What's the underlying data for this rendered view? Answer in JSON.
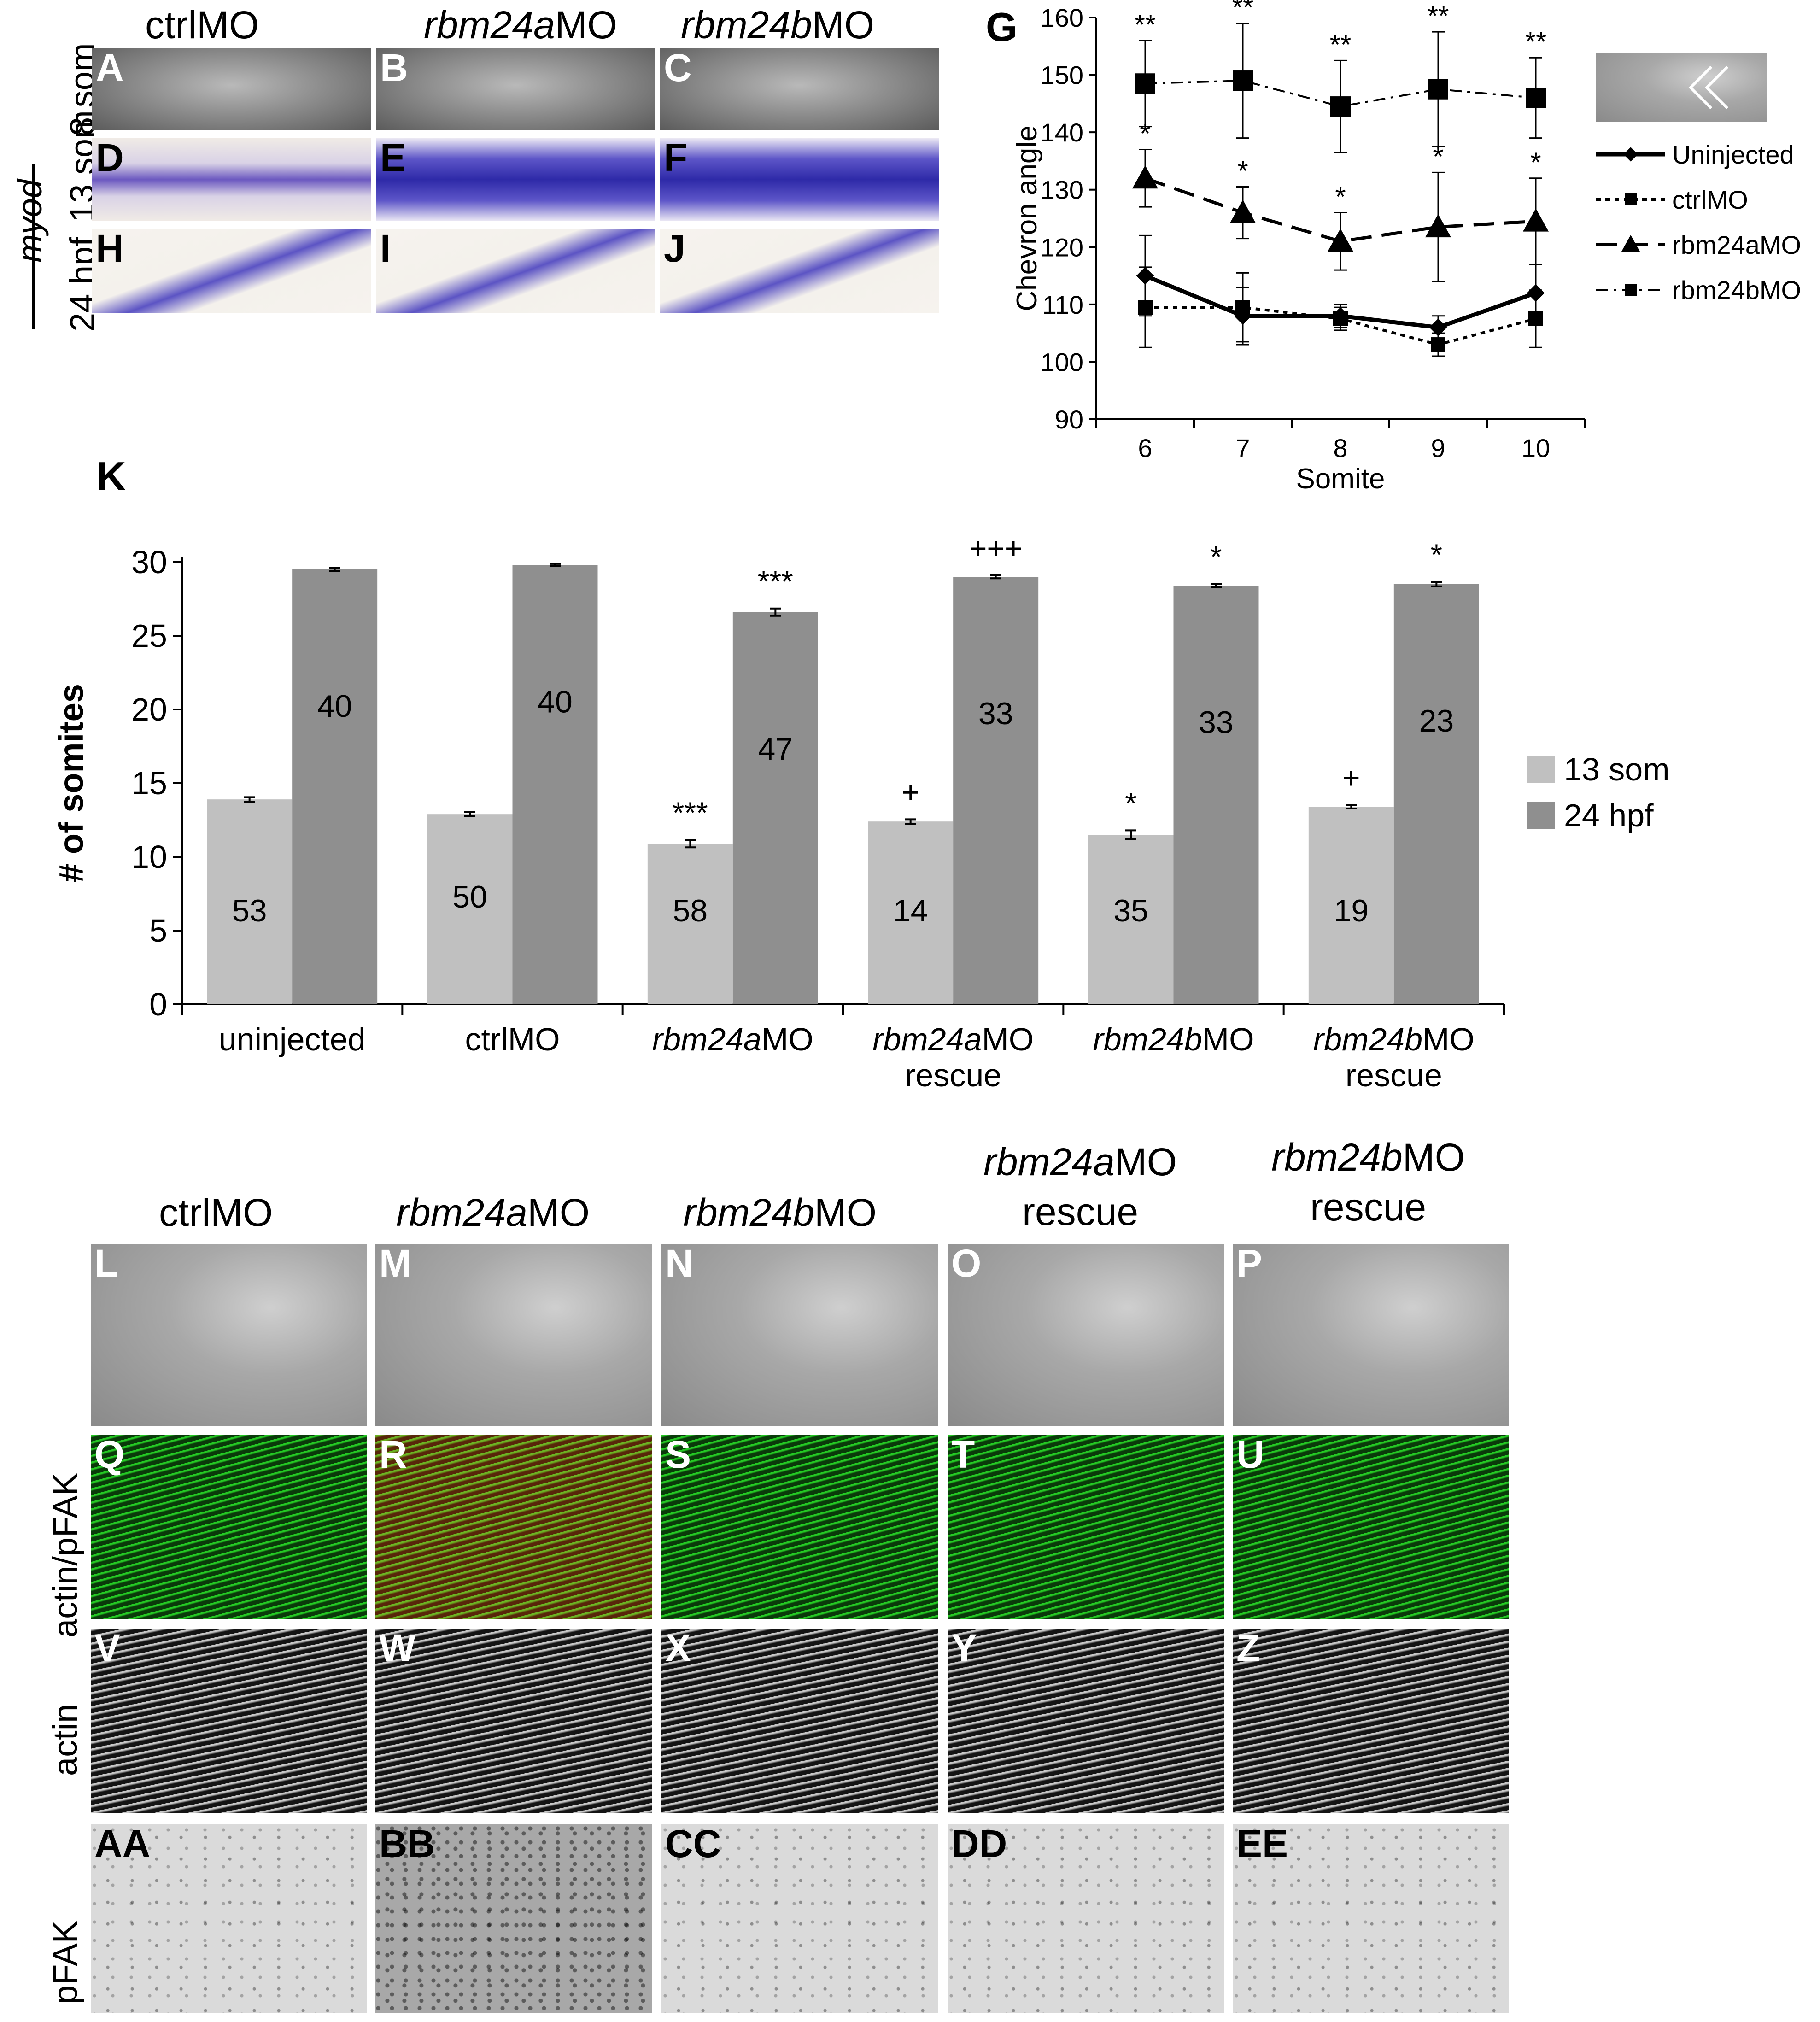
{
  "top_panels": {
    "col_headers": [
      {
        "text": "ctrlMO",
        "italic_part": "",
        "rest": "ctrlMO"
      },
      {
        "text": "rbm24aMO",
        "italic_part": "rbm24a",
        "rest": "MO"
      },
      {
        "text": "rbm24bMO",
        "italic_part": "rbm24b",
        "rest": "MO"
      }
    ],
    "row_headers": [
      "8 som",
      "13 som",
      "24 hpf"
    ],
    "gene_label": "myod",
    "labels": [
      "A",
      "B",
      "C",
      "D",
      "E",
      "F",
      "H",
      "I",
      "J"
    ]
  },
  "panel_g": {
    "letter": "G",
    "chart_data": {
      "type": "line",
      "x": [
        6,
        7,
        8,
        9,
        10
      ],
      "xlabel": "Somite",
      "ylabel": "Chevron angle",
      "ylim": [
        90,
        160
      ],
      "yticks": [
        90,
        100,
        110,
        120,
        130,
        140,
        150,
        160
      ],
      "series": [
        {
          "name": "Uninjected",
          "values": [
            115,
            108,
            108,
            106,
            112
          ],
          "errors": [
            7,
            5,
            2,
            2,
            5
          ],
          "marker": "diamond",
          "style": "solid-thick"
        },
        {
          "name": "ctrlMO",
          "values": [
            109.5,
            109.5,
            107.5,
            103,
            107.5
          ],
          "errors": [
            7,
            6,
            2,
            2,
            5
          ],
          "marker": "square",
          "style": "dotted"
        },
        {
          "name": "rbm24aMO",
          "values": [
            132,
            126,
            121,
            123.5,
            124.5
          ],
          "errors": [
            5,
            4.5,
            5,
            9.5,
            7.5
          ],
          "marker": "triangle",
          "style": "dashed"
        },
        {
          "name": "rbm24bMO",
          "values": [
            148.5,
            149,
            144.5,
            147.5,
            146
          ],
          "errors": [
            7.5,
            10,
            8,
            10,
            7
          ],
          "marker": "square",
          "style": "dash-dot"
        }
      ],
      "annotations": [
        {
          "x": 6,
          "series": "rbm24bMO",
          "text": "**"
        },
        {
          "x": 7,
          "series": "rbm24bMO",
          "text": "**"
        },
        {
          "x": 8,
          "series": "rbm24bMO",
          "text": "**"
        },
        {
          "x": 9,
          "series": "rbm24bMO",
          "text": "**"
        },
        {
          "x": 10,
          "series": "rbm24bMO",
          "text": "**"
        },
        {
          "x": 6,
          "series": "rbm24aMO",
          "text": "*"
        },
        {
          "x": 7,
          "series": "rbm24aMO",
          "text": "*"
        },
        {
          "x": 8,
          "series": "rbm24aMO",
          "text": "*"
        },
        {
          "x": 9,
          "series": "rbm24aMO",
          "text": "*"
        },
        {
          "x": 10,
          "series": "rbm24aMO",
          "text": "*"
        }
      ],
      "legend_position": "right"
    }
  },
  "panel_k": {
    "letter": "K",
    "chart_data": {
      "type": "bar",
      "categories": [
        [
          "uninjected"
        ],
        [
          "ctrlMO"
        ],
        [
          "rbm24aMO"
        ],
        [
          "rbm24aMO",
          "rescue"
        ],
        [
          "rbm24bMO"
        ],
        [
          "rbm24bMO",
          "rescue"
        ]
      ],
      "category_italic": [
        "",
        "",
        "rbm24a",
        "rbm24a",
        "rbm24b",
        "rbm24b"
      ],
      "ylabel": "# of somites",
      "ylim": [
        0,
        30
      ],
      "yticks": [
        0,
        5,
        10,
        15,
        20,
        25,
        30
      ],
      "series": [
        {
          "name": "13 som",
          "color": "#c0c0c0",
          "values": [
            13.9,
            12.9,
            10.9,
            12.4,
            11.5,
            13.4
          ],
          "errors": [
            0.15,
            0.15,
            0.25,
            0.15,
            0.3,
            0.12
          ],
          "n": [
            "53",
            "50",
            "58",
            "14",
            "35",
            "19"
          ],
          "marks": [
            "",
            "",
            "***",
            "+",
            "*",
            "+"
          ]
        },
        {
          "name": "24 hpf",
          "color": "#8f8f8f",
          "values": [
            29.5,
            29.8,
            26.6,
            29.0,
            28.4,
            28.5
          ],
          "errors": [
            0.1,
            0.08,
            0.25,
            0.1,
            0.12,
            0.15
          ],
          "n": [
            "40",
            "40",
            "47",
            "33",
            "33",
            "23"
          ],
          "marks": [
            "",
            "",
            "***",
            "+++",
            "*",
            "*"
          ]
        }
      ],
      "legend_position": "right"
    }
  },
  "bottom_panels": {
    "col_headers": [
      {
        "line1_italic": "",
        "line1_rest": "ctrlMO",
        "line2": ""
      },
      {
        "line1_italic": "rbm24a",
        "line1_rest": "MO",
        "line2": ""
      },
      {
        "line1_italic": "rbm24b",
        "line1_rest": "MO",
        "line2": ""
      },
      {
        "line1_italic": "rbm24a",
        "line1_rest": "MO",
        "line2": "rescue"
      },
      {
        "line1_italic": "rbm24b",
        "line1_rest": "MO",
        "line2": "rescue"
      }
    ],
    "row_headers": [
      "actin/pFAK",
      "actin",
      "pFAK"
    ],
    "row_labels": [
      [
        "L",
        "M",
        "N",
        "O",
        "P"
      ],
      [
        "Q",
        "R",
        "S",
        "T",
        "U"
      ],
      [
        "V",
        "W",
        "X",
        "Y",
        "Z"
      ],
      [
        "AA",
        "BB",
        "CC",
        "DD",
        "EE"
      ]
    ]
  }
}
